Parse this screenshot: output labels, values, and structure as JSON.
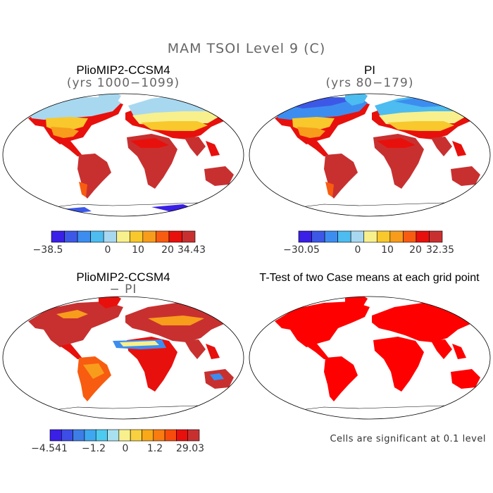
{
  "figure": {
    "title": "MAM TSOI Level 9 (C)",
    "footnote": "Cells are significant at 0.1 level"
  },
  "panels": [
    {
      "title": "PlioMIP2-CCSM4",
      "subtitle": "(yrs 1000−1099)",
      "colorbar": {
        "colors": [
          "#3a1fe6",
          "#3d58e6",
          "#3d8df0",
          "#4dbcf0",
          "#a8d8f0",
          "#f8f08c",
          "#f8c82c",
          "#f89c1c",
          "#f85c10",
          "#e8100c",
          "#c83030"
        ],
        "labels": [
          "−38.5",
          "0",
          "10",
          "20",
          "34.43"
        ]
      }
    },
    {
      "title": "PI",
      "subtitle": "(yrs 80−179)",
      "colorbar": {
        "colors": [
          "#3a1fe6",
          "#3d58e6",
          "#3d8df0",
          "#4dbcf0",
          "#a8d8f0",
          "#f8f08c",
          "#f8c82c",
          "#f89c1c",
          "#f85c10",
          "#e8100c",
          "#c83030"
        ],
        "labels": [
          "−30.05",
          "0",
          "10",
          "20",
          "32.35"
        ]
      }
    },
    {
      "title": "PlioMIP2-CCSM4",
      "subtitle": "− PI",
      "colorbar": {
        "colors": [
          "#3a1fe6",
          "#3d4ee6",
          "#3d7de6",
          "#3da8f0",
          "#4dcaf0",
          "#a8e0f0",
          "#f8f08c",
          "#f8d040",
          "#f8a818",
          "#f87c10",
          "#f84c0c",
          "#e8100c",
          "#c83030"
        ],
        "labels": [
          "−4.541",
          "−1.2",
          "0",
          "1.2",
          "29.03"
        ]
      }
    },
    {
      "title": "T-Test of two Case means at each grid point"
    }
  ]
}
